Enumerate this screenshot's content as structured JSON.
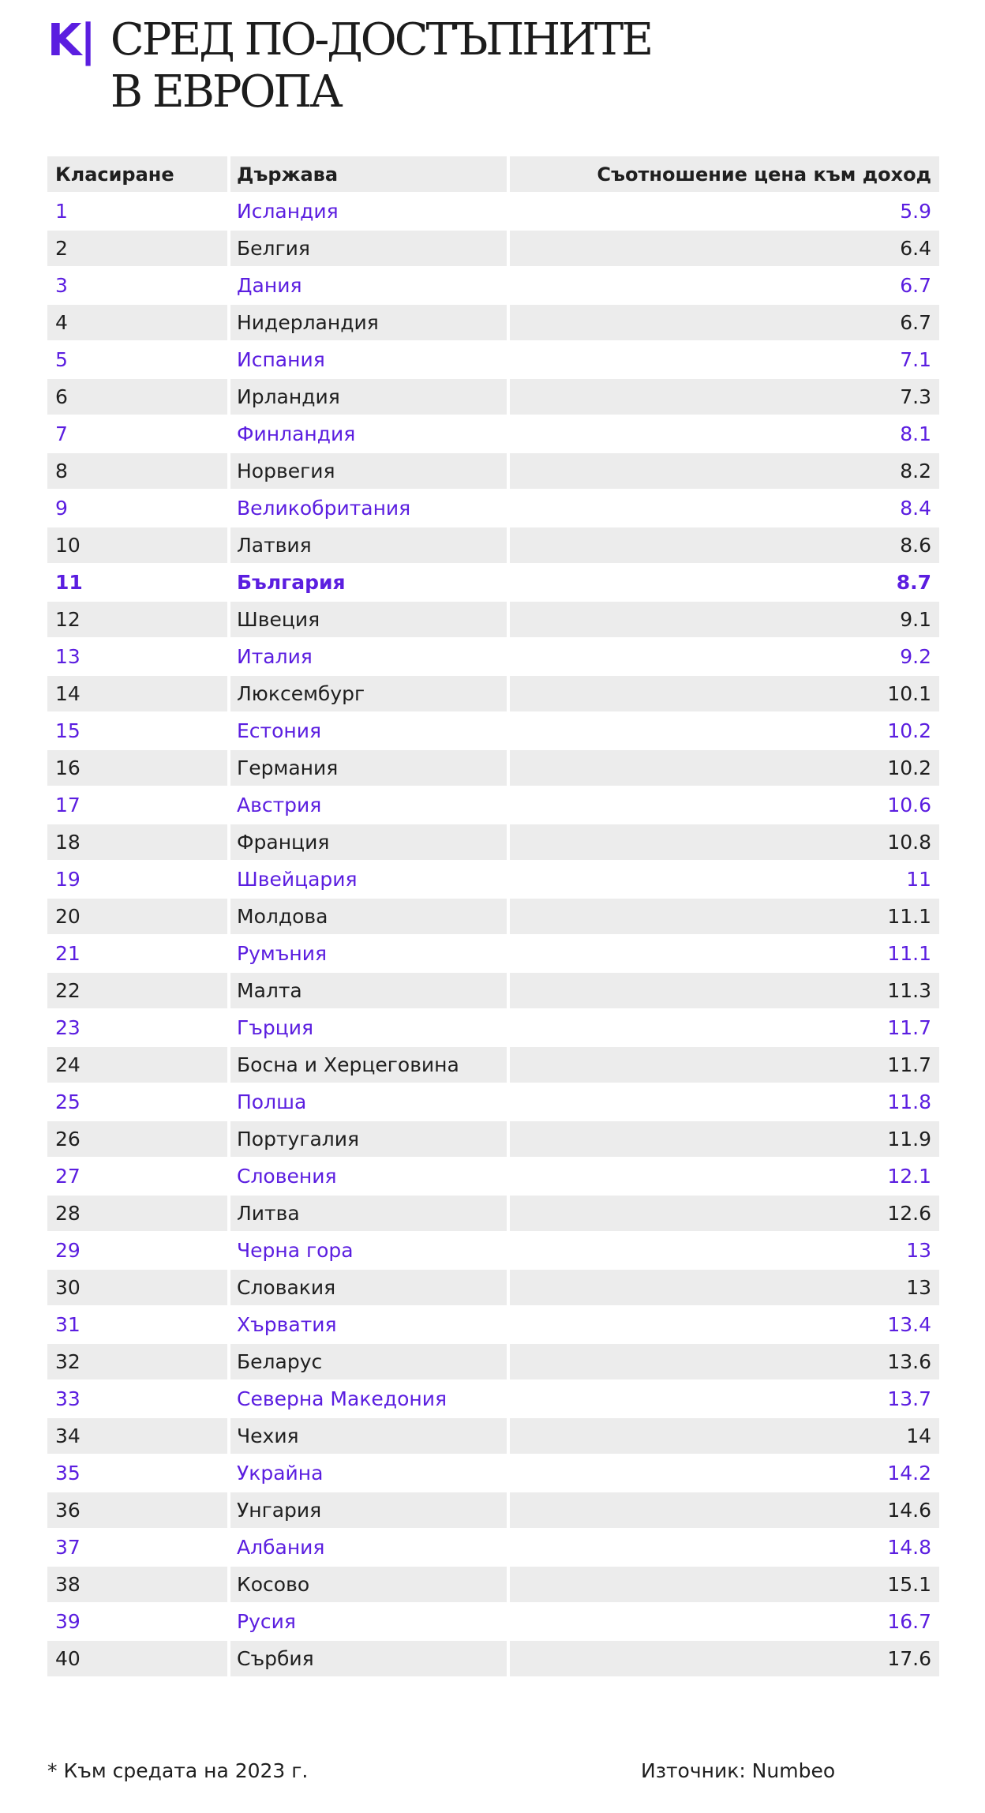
{
  "brand": {
    "logo": "K|"
  },
  "title_lines": [
    "СРЕД ПО-ДОСТЪПНИТЕ",
    "В ЕВРОПА"
  ],
  "chart_data": {
    "type": "table",
    "columns": [
      "Класиране",
      "Държава",
      "Съотношение цена към доход"
    ],
    "rows": [
      [
        "1",
        "Исландия",
        "5.9"
      ],
      [
        "2",
        "Белгия",
        "6.4"
      ],
      [
        "3",
        "Дания",
        "6.7"
      ],
      [
        "4",
        "Нидерландия",
        "6.7"
      ],
      [
        "5",
        "Испания",
        "7.1"
      ],
      [
        "6",
        "Ирландия",
        "7.3"
      ],
      [
        "7",
        "Финландия",
        "8.1"
      ],
      [
        "8",
        "Норвегия",
        "8.2"
      ],
      [
        "9",
        "Великобритания",
        "8.4"
      ],
      [
        "10",
        "Латвия",
        "8.6"
      ],
      [
        "11",
        "България",
        "8.7"
      ],
      [
        "12",
        "Швеция",
        "9.1"
      ],
      [
        "13",
        "Италия",
        "9.2"
      ],
      [
        "14",
        "Люксембург",
        "10.1"
      ],
      [
        "15",
        "Естония",
        "10.2"
      ],
      [
        "16",
        "Германия",
        "10.2"
      ],
      [
        "17",
        "Австрия",
        "10.6"
      ],
      [
        "18",
        "Франция",
        "10.8"
      ],
      [
        "19",
        "Швейцария",
        "11"
      ],
      [
        "20",
        "Молдова",
        "11.1"
      ],
      [
        "21",
        "Румъния",
        "11.1"
      ],
      [
        "22",
        "Малта",
        "11.3"
      ],
      [
        "23",
        "Гърция",
        "11.7"
      ],
      [
        "24",
        "Босна и Херцеговина",
        "11.7"
      ],
      [
        "25",
        "Полша",
        "11.8"
      ],
      [
        "26",
        "Португалия",
        "11.9"
      ],
      [
        "27",
        "Словения",
        "12.1"
      ],
      [
        "28",
        "Литва",
        "12.6"
      ],
      [
        "29",
        "Черна гора",
        "13"
      ],
      [
        "30",
        "Словакия",
        "13"
      ],
      [
        "31",
        "Хърватия",
        "13.4"
      ],
      [
        "32",
        "Беларус",
        "13.6"
      ],
      [
        "33",
        "Северна Македония",
        "13.7"
      ],
      [
        "34",
        "Чехия",
        "14"
      ],
      [
        "35",
        "Украйна",
        "14.2"
      ],
      [
        "36",
        "Унгария",
        "14.6"
      ],
      [
        "37",
        "Албания",
        "14.8"
      ],
      [
        "38",
        "Косово",
        "15.1"
      ],
      [
        "39",
        "Русия",
        "16.7"
      ],
      [
        "40",
        "Сърбия",
        "17.6"
      ]
    ],
    "highlight_rank": "11"
  },
  "colors": {
    "accent": "#5b1ee0",
    "text": "#1f1f1f",
    "stripe": "#ececec"
  },
  "footer": {
    "note": "* Към средата на 2023 г.",
    "source": "Източник: Numbeo"
  }
}
